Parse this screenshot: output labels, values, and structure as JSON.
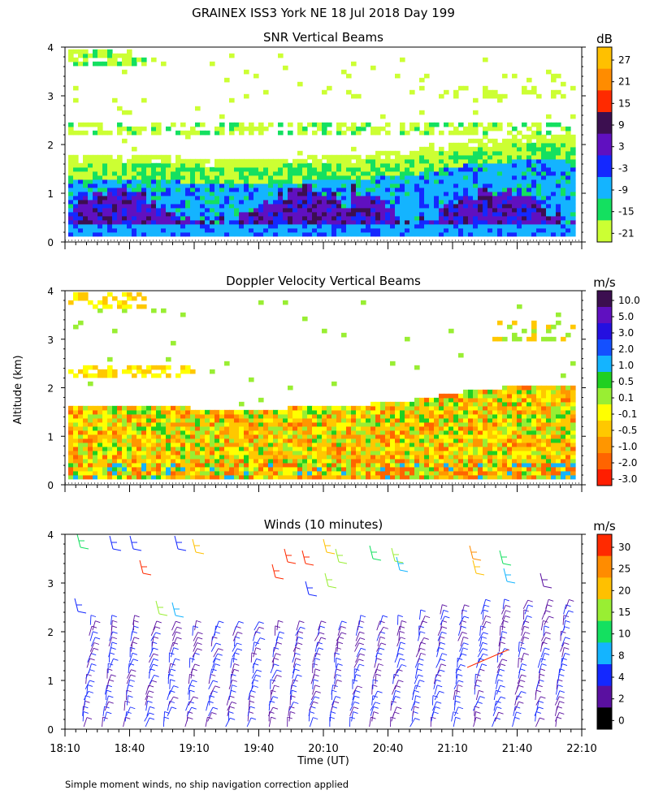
{
  "header": {
    "title": "GRAINEX ISS3 York NE  18 Jul 2018 Day 199"
  },
  "shared": {
    "ylabel": "Altitude (km)",
    "xlabel": "Time (UT)",
    "x_ticks": [
      "18:10",
      "18:40",
      "19:10",
      "19:40",
      "20:10",
      "20:40",
      "21:10",
      "21:40",
      "22:10"
    ],
    "y_ticks": [
      "0",
      "1",
      "2",
      "3",
      "4"
    ],
    "ylim": [
      0,
      4
    ],
    "xlim_minutes": [
      0,
      240
    ]
  },
  "footer": {
    "note": "Simple moment winds, no ship navigation correction applied"
  },
  "chart_data": [
    {
      "type": "heatmap",
      "title": "SNR Vertical Beams",
      "colorbar_unit": "dB",
      "colorbar_labels": [
        "27",
        "21",
        "15",
        "9",
        "3",
        "-3",
        "-9",
        "-15",
        "-21"
      ],
      "colorbar_colors": [
        "#ffc000",
        "#ff8c00",
        "#ff2a00",
        "#3c0f50",
        "#6010c0",
        "#1428ff",
        "#14b4ff",
        "#14e060",
        "#ccff33"
      ],
      "summary": {
        "main_echo_top_km": [
          1.6,
          1.6,
          1.55,
          1.5,
          1.55,
          1.6,
          1.7,
          1.9,
          2.0,
          2.0
        ],
        "strong_layer_km": [
          0.2,
          1.1
        ],
        "upper_layers_km": [
          2.3,
          3.7
        ]
      }
    },
    {
      "type": "heatmap",
      "title": "Doppler Velocity Vertical Beams",
      "colorbar_unit": "m/s",
      "colorbar_labels": [
        "10.0",
        "5.0",
        "3.0",
        "2.0",
        "1.0",
        "0.5",
        "0.1",
        "-0.1",
        "-0.5",
        "-1.0",
        "-2.0",
        "-3.0"
      ],
      "colorbar_colors": [
        "#3c0f50",
        "#6010c0",
        "#2410e0",
        "#1450ff",
        "#14b4ff",
        "#20d020",
        "#99ee33",
        "#ffff00",
        "#ffc800",
        "#ff9600",
        "#ff6400",
        "#ff1e00"
      ],
      "summary": {
        "echo_top_km": [
          1.6,
          1.6,
          1.55,
          1.5,
          1.55,
          1.6,
          1.7,
          1.9,
          2.0,
          2.0
        ]
      }
    },
    {
      "type": "scatter",
      "title": "Winds (10 minutes)",
      "colorbar_unit": "m/s",
      "colorbar_labels": [
        "30",
        "25",
        "20",
        "15",
        "10",
        "8",
        "4",
        "2",
        "0"
      ],
      "colorbar_colors": [
        "#ff2a00",
        "#ff8c00",
        "#ffc000",
        "#99ee33",
        "#14e060",
        "#14b4ff",
        "#1428ff",
        "#5a10a0",
        "#000000"
      ],
      "summary": {
        "profile_interval_min": 10,
        "max_altitude_km": 4
      }
    }
  ]
}
